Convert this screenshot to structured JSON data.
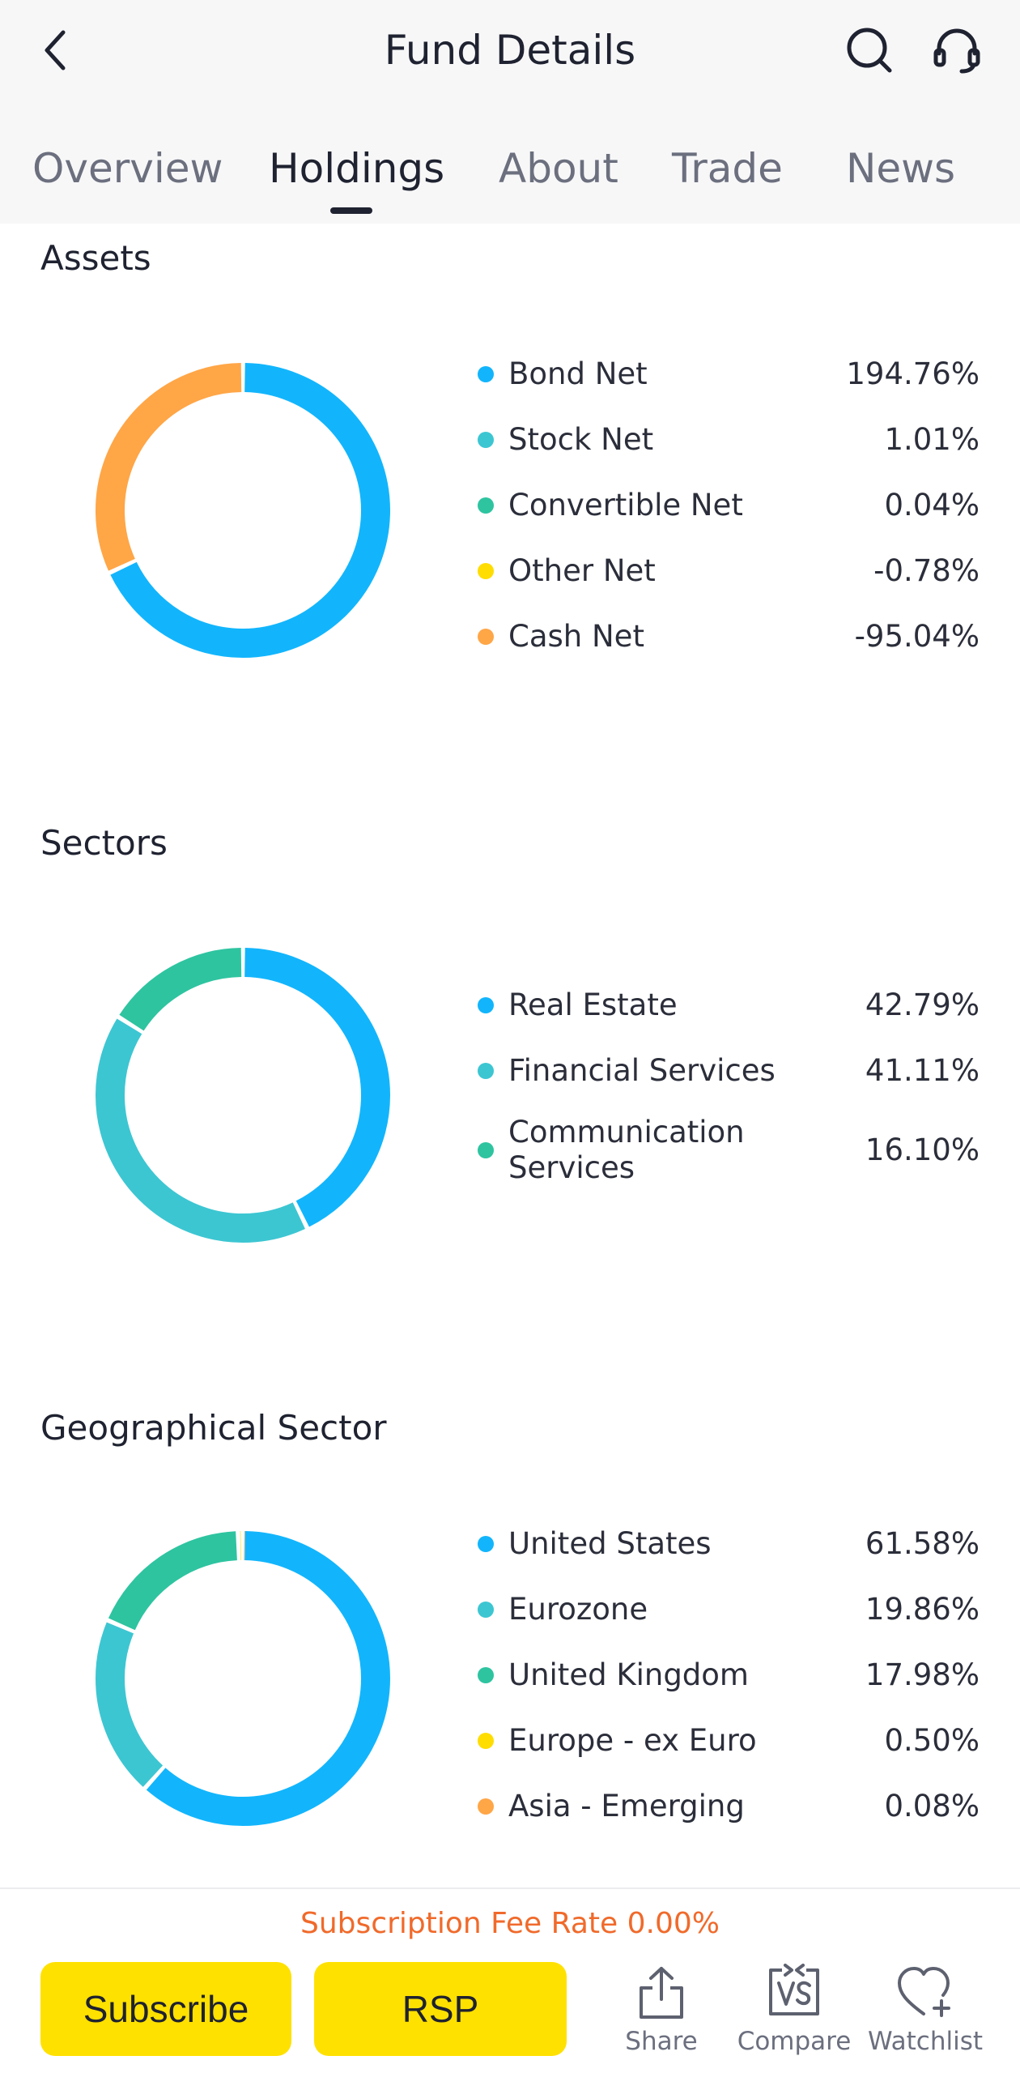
{
  "header": {
    "title": "Fund Details"
  },
  "tabs": [
    {
      "label": "Overview"
    },
    {
      "label": "Holdings"
    },
    {
      "label": "About"
    },
    {
      "label": "Trade"
    },
    {
      "label": "News"
    }
  ],
  "active_tab": "Holdings",
  "sections": {
    "assets": {
      "title": "Assets",
      "items": [
        {
          "name": "Bond Net",
          "value": "194.76%",
          "color": "#12b5fc"
        },
        {
          "name": "Stock Net",
          "value": "1.01%",
          "color": "#3cc6d2"
        },
        {
          "name": "Convertible Net",
          "value": "0.04%",
          "color": "#2ec4a0"
        },
        {
          "name": "Other Net",
          "value": "-0.78%",
          "color": "#ffdd00"
        },
        {
          "name": "Cash Net",
          "value": "-95.04%",
          "color": "#ffa647"
        }
      ]
    },
    "sectors": {
      "title": "Sectors",
      "items": [
        {
          "name": "Real Estate",
          "value": "42.79%",
          "color": "#12b5fc"
        },
        {
          "name": "Financial Services",
          "value": "41.11%",
          "color": "#3cc6d2"
        },
        {
          "name": "Communication Services",
          "value": "16.10%",
          "color": "#2ec4a0"
        }
      ]
    },
    "geo": {
      "title": "Geographical Sector",
      "items": [
        {
          "name": "United States",
          "value": "61.58%",
          "color": "#12b5fc"
        },
        {
          "name": "Eurozone",
          "value": "19.86%",
          "color": "#3cc6d2"
        },
        {
          "name": "United Kingdom",
          "value": "17.98%",
          "color": "#2ec4a0"
        },
        {
          "name": "Europe - ex Euro",
          "value": "0.50%",
          "color": "#ffdd00"
        },
        {
          "name": "Asia - Emerging",
          "value": "0.08%",
          "color": "#ffa647"
        }
      ]
    }
  },
  "chart_data": [
    {
      "type": "pie",
      "title": "Assets",
      "categories": [
        "Bond Net",
        "Stock Net",
        "Convertible Net",
        "Other Net",
        "Cash Net"
      ],
      "values": [
        194.76,
        1.01,
        0.04,
        -0.78,
        -95.04
      ],
      "displayed_arc_fractions": [
        0.68,
        0.32
      ],
      "displayed_arc_categories": [
        "Bond Net",
        "Cash Net"
      ],
      "colors": [
        "#12b5fc",
        "#ffa647"
      ],
      "donut": true
    },
    {
      "type": "pie",
      "title": "Sectors",
      "categories": [
        "Real Estate",
        "Financial Services",
        "Communication Services"
      ],
      "values": [
        42.79,
        41.11,
        16.1
      ],
      "colors": [
        "#12b5fc",
        "#3cc6d2",
        "#2ec4a0"
      ],
      "donut": true
    },
    {
      "type": "pie",
      "title": "Geographical Sector",
      "categories": [
        "United States",
        "Eurozone",
        "United Kingdom",
        "Europe - ex Euro",
        "Asia - Emerging"
      ],
      "values": [
        61.58,
        19.86,
        17.98,
        0.5,
        0.08
      ],
      "colors": [
        "#12b5fc",
        "#3cc6d2",
        "#2ec4a0",
        "#ffdd00",
        "#ffa647"
      ],
      "donut": true
    }
  ],
  "footer": {
    "fee_text": "Subscription Fee Rate 0.00%",
    "subscribe_label": "Subscribe",
    "rsp_label": "RSP",
    "share_label": "Share",
    "compare_label": "Compare",
    "watchlist_label": "Watchlist"
  },
  "icons": {
    "back": "chevron-left-icon",
    "search": "search-icon",
    "support": "headset-icon",
    "share": "share-icon",
    "compare": "vs-icon",
    "watchlist": "heart-plus-icon"
  },
  "colors": {
    "accent_yellow": "#ffe100",
    "fee_orange": "#f06a2b"
  }
}
